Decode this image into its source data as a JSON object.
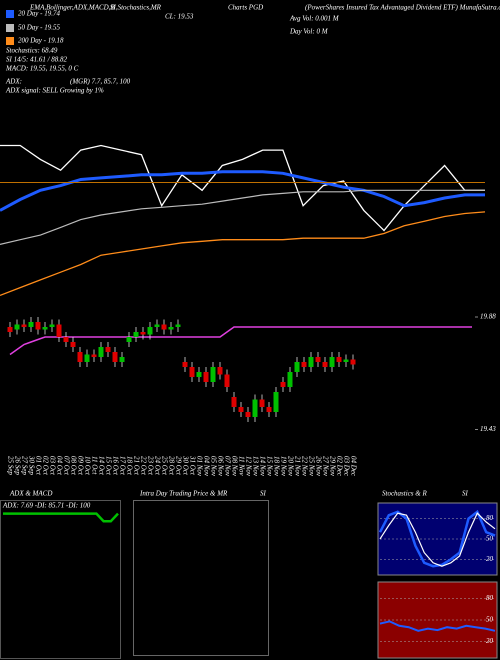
{
  "chart_data": [
    {
      "type": "line",
      "annotations": [
        "EMA,Bollinger,ADX,MACD,B",
        "SI,Stochastics,MR",
        "CL: 19.53",
        "Charts PGD",
        "(PowerShares Insured Tax Advantaged Dividend ETF) MunafaSutra.com",
        "Avg Vol: 0.001 M",
        "Day Vol: 0  M",
        "Stochastics: 68.49",
        "SI 14/5: 41.61 / 88.82",
        "MACD: 19.55, 19.55, 0  C",
        "ADX:",
        "(MGR) 7.7, 85.7, 100",
        "ADX  signal: SELL Growing by 1%"
      ],
      "ylim": [
        18.9,
        20.0
      ],
      "hline": 19.66,
      "hline_color": "#c07000",
      "series": [
        {
          "color": "#ffffff",
          "values": [
            19.9,
            19.9,
            19.81,
            19.74,
            19.87,
            19.9,
            19.87,
            19.84,
            19.51,
            19.71,
            19.61,
            19.77,
            19.81,
            19.87,
            19.87,
            19.51,
            19.64,
            19.67,
            19.48,
            19.35,
            19.51,
            19.64,
            19.77,
            19.61,
            19.61
          ]
        },
        {
          "name": "20 Day - 19.74",
          "color": "#1e5bff",
          "values": [
            19.48,
            19.55,
            19.61,
            19.64,
            19.68,
            19.69,
            19.7,
            19.71,
            19.71,
            19.72,
            19.72,
            19.73,
            19.73,
            19.73,
            19.72,
            19.69,
            19.66,
            19.63,
            19.61,
            19.57,
            19.51,
            19.53,
            19.56,
            19.58,
            19.58
          ]
        },
        {
          "name": "50 Day - 19.55",
          "color": "#bbbbbb",
          "values": [
            19.26,
            19.29,
            19.32,
            19.37,
            19.42,
            19.45,
            19.47,
            19.49,
            19.5,
            19.51,
            19.52,
            19.54,
            19.56,
            19.58,
            19.59,
            19.6,
            19.6,
            19.6,
            19.61,
            19.61,
            19.61,
            19.61,
            19.61,
            19.61,
            19.61
          ]
        },
        {
          "name": "200 Day - 19.18",
          "color": "#ff8c1a",
          "values": [
            18.93,
            18.98,
            19.03,
            19.08,
            19.13,
            19.19,
            19.21,
            19.23,
            19.25,
            19.27,
            19.28,
            19.29,
            19.29,
            19.29,
            19.29,
            19.3,
            19.3,
            19.3,
            19.3,
            19.33,
            19.38,
            19.41,
            19.44,
            19.46,
            19.47
          ]
        }
      ]
    },
    {
      "type": "candlestick",
      "categories": [
        "25 Sep",
        "26 Sep",
        "27 Sep",
        "30 Sep",
        "01 Oct",
        "02 Oct",
        "03 Oct",
        "04 Oct",
        "07 Oct",
        "08 Oct",
        "09 Oct",
        "10 Oct",
        "11 Oct",
        "14 Oct",
        "15 Oct",
        "16 Oct",
        "17 Oct",
        "18 Oct",
        "21 Oct",
        "22 Oct",
        "23 Oct",
        "24 Oct",
        "25 Oct",
        "28 Oct",
        "29 Oct",
        "30 Oct",
        "31 Oct",
        "01 Nov",
        "04 Nov",
        "05 Nov",
        "06 Nov",
        "07 Nov",
        "08 Nov",
        "11 Nov",
        "12 Nov",
        "13 Nov",
        "14 Nov",
        "15 Nov",
        "18 Nov",
        "19 Nov",
        "20 Nov",
        "21 Nov",
        "22 Nov",
        "25 Nov",
        "26 Nov",
        "27 Nov",
        "29 Nov",
        "02 Dec",
        "03 Dec",
        "04 Dec"
      ],
      "open": [
        19.84,
        19.83,
        19.85,
        19.84,
        19.86,
        19.83,
        19.84,
        19.85,
        19.8,
        19.78,
        19.74,
        19.7,
        19.73,
        19.72,
        19.76,
        19.74,
        19.7,
        19.78,
        19.8,
        19.82,
        19.81,
        19.84,
        19.85,
        19.83,
        19.84,
        19.7,
        19.68,
        19.64,
        19.66,
        19.62,
        19.68,
        19.65,
        19.56,
        19.52,
        19.5,
        19.48,
        19.55,
        19.52,
        19.5,
        19.62,
        19.6,
        19.66,
        19.7,
        19.68,
        19.72,
        19.7,
        19.68,
        19.72,
        19.7,
        19.71
      ],
      "high": [
        19.86,
        19.87,
        19.87,
        19.88,
        19.88,
        19.86,
        19.87,
        19.87,
        19.82,
        19.8,
        19.76,
        19.75,
        19.75,
        19.78,
        19.78,
        19.76,
        19.74,
        19.82,
        19.84,
        19.84,
        19.86,
        19.87,
        19.87,
        19.86,
        19.87,
        19.72,
        19.7,
        19.68,
        19.68,
        19.7,
        19.7,
        19.67,
        19.58,
        19.54,
        19.52,
        19.57,
        19.57,
        19.54,
        19.6,
        19.64,
        19.68,
        19.72,
        19.72,
        19.74,
        19.74,
        19.72,
        19.74,
        19.74,
        19.73,
        19.73
      ],
      "low": [
        19.8,
        19.81,
        19.82,
        19.82,
        19.81,
        19.81,
        19.82,
        19.78,
        19.76,
        19.74,
        19.68,
        19.68,
        19.7,
        19.7,
        19.72,
        19.68,
        19.68,
        19.76,
        19.78,
        19.79,
        19.79,
        19.82,
        19.81,
        19.81,
        19.82,
        19.66,
        19.62,
        19.62,
        19.6,
        19.6,
        19.63,
        19.58,
        19.5,
        19.48,
        19.46,
        19.46,
        19.5,
        19.48,
        19.48,
        19.58,
        19.58,
        19.64,
        19.66,
        19.66,
        19.68,
        19.66,
        19.66,
        19.68,
        19.68,
        19.67
      ],
      "close": [
        19.82,
        19.85,
        19.84,
        19.86,
        19.83,
        19.84,
        19.85,
        19.8,
        19.78,
        19.76,
        19.7,
        19.73,
        19.72,
        19.76,
        19.74,
        19.7,
        19.72,
        19.8,
        19.82,
        19.81,
        19.84,
        19.85,
        19.83,
        19.84,
        19.85,
        19.68,
        19.64,
        19.66,
        19.62,
        19.68,
        19.65,
        19.6,
        19.52,
        19.5,
        19.48,
        19.55,
        19.52,
        19.5,
        19.58,
        19.6,
        19.66,
        19.7,
        19.68,
        19.72,
        19.7,
        19.68,
        19.72,
        19.7,
        19.71,
        19.69
      ],
      "band": {
        "color": "#e040e0",
        "values": [
          19.73,
          19.75,
          19.77,
          19.78,
          19.79,
          19.8,
          19.8,
          19.8,
          19.8,
          19.8,
          19.8,
          19.8,
          19.8,
          19.8,
          19.8,
          19.8,
          19.8,
          19.8,
          19.8,
          19.8,
          19.8,
          19.8,
          19.8,
          19.8,
          19.8,
          19.8,
          19.8,
          19.8,
          19.8,
          19.8,
          19.8,
          19.82,
          19.84,
          19.84,
          19.84,
          19.84,
          19.84,
          19.84,
          19.84,
          19.84,
          19.84,
          19.84,
          19.84,
          19.84,
          19.84,
          19.84,
          19.84,
          19.84,
          19.84,
          19.84
        ]
      },
      "up_color": "#00c000",
      "down_color": "#e00000",
      "ylim": [
        19.42,
        19.9
      ],
      "yticks": [
        19.88,
        19.43
      ]
    },
    {
      "type": "line",
      "title": "ADX  & MACD",
      "subtitle": "ADX: 7.69 -DI: 85.71 -DI: 100",
      "ylim": [
        0,
        100
      ],
      "series": [
        {
          "color": "#00c000",
          "values": [
            93,
            93,
            93,
            93,
            93,
            93,
            93,
            93,
            93,
            93,
            93,
            93,
            93,
            93,
            88,
            88,
            93
          ]
        }
      ]
    },
    {
      "type": "line",
      "title": "Intra Day Trading Price  & MR",
      "annotations": [
        "SI"
      ],
      "series": []
    },
    {
      "type": "line",
      "title": "Stochastics  & R",
      "annotations": [
        "SI"
      ],
      "ylim": [
        0,
        100
      ],
      "yticks": [
        80,
        50,
        20
      ],
      "series": [
        {
          "color": "#1e5bff",
          "values": [
            60,
            85,
            90,
            80,
            40,
            15,
            10,
            12,
            20,
            30,
            80,
            90,
            60,
            55
          ]
        },
        {
          "color": "#ffffff",
          "values": [
            50,
            70,
            88,
            85,
            60,
            30,
            15,
            10,
            15,
            25,
            60,
            88,
            75,
            65
          ]
        }
      ]
    },
    {
      "type": "line",
      "ylim": [
        0,
        100
      ],
      "yticks": [
        80,
        50,
        20
      ],
      "series": [
        {
          "color": "#1e5bff",
          "values": [
            45,
            48,
            42,
            40,
            35,
            38,
            36,
            40,
            38,
            42,
            40,
            38,
            35
          ]
        }
      ]
    }
  ]
}
